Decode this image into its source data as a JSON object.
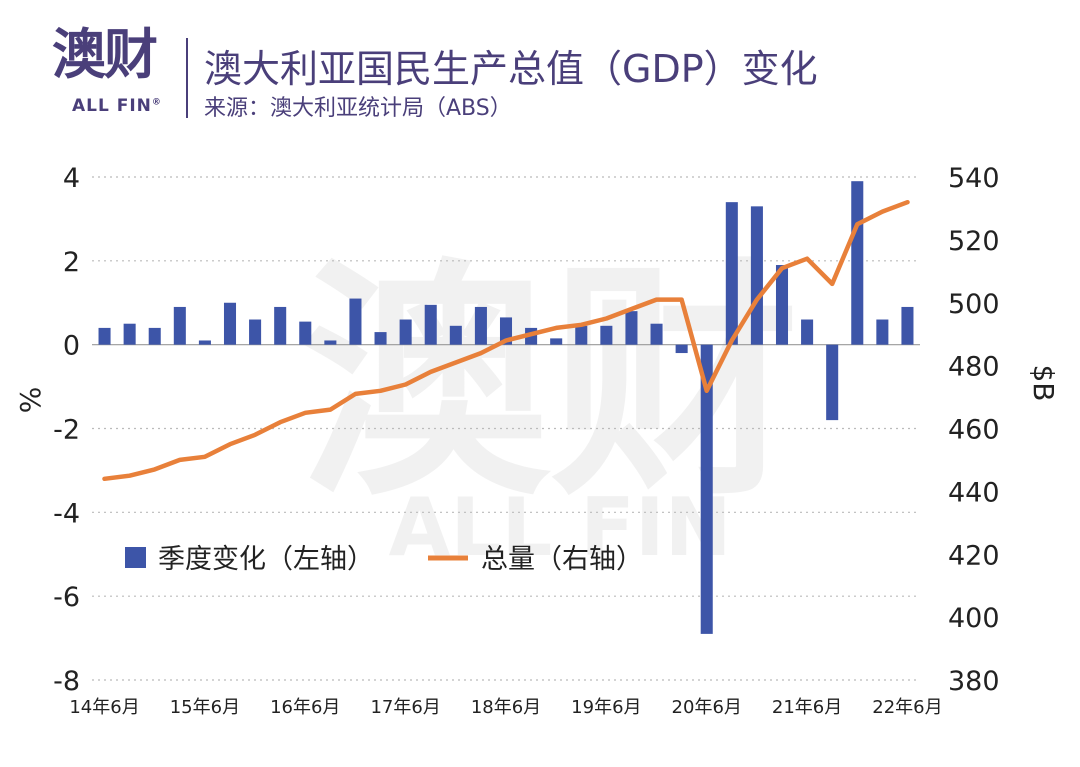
{
  "header": {
    "logo_main": "澳财",
    "logo_sub": "ALL FIN",
    "logo_reg": "®",
    "title": "澳大利亚国民生产总值（GDP）变化",
    "source": "来源：澳大利亚统计局（ABS）"
  },
  "watermark": {
    "main": "澳财",
    "sub": "ALL FIN"
  },
  "chart_data": {
    "type": "bar",
    "x_tick_labels": [
      "14年6月",
      "15年6月",
      "16年6月",
      "17年6月",
      "18年6月",
      "19年6月",
      "20年6月",
      "21年6月",
      "22年6月"
    ],
    "left_axis": {
      "label": "%",
      "ylim": [
        -8,
        4
      ],
      "ticks": [
        -8,
        -6,
        -4,
        -2,
        0,
        2,
        4
      ]
    },
    "right_axis": {
      "label": "$B",
      "ylim": [
        380,
        540
      ],
      "ticks": [
        380,
        400,
        420,
        440,
        460,
        480,
        500,
        520,
        540
      ]
    },
    "grid": "horizontal dotted",
    "legend_position": "lower-left",
    "series": [
      {
        "name": "季度变化（左轴）",
        "kind": "bar",
        "axis": "left",
        "color": "#3d55a8",
        "values": [
          0.4,
          0.5,
          0.4,
          0.9,
          0.1,
          1.0,
          0.6,
          0.9,
          0.55,
          0.1,
          1.1,
          0.3,
          0.6,
          0.95,
          0.45,
          0.9,
          0.65,
          0.4,
          0.15,
          0.45,
          0.45,
          0.8,
          0.5,
          -0.2,
          -6.9,
          3.4,
          3.3,
          1.9,
          0.6,
          -1.8,
          3.9,
          0.6,
          0.9
        ]
      },
      {
        "name": "总量（右轴）",
        "kind": "line",
        "axis": "right",
        "color": "#e8803a",
        "values": [
          444,
          445,
          447,
          450,
          451,
          455,
          458,
          462,
          465,
          466,
          471,
          472,
          474,
          478,
          481,
          484,
          488,
          490,
          492,
          493,
          495,
          498,
          501,
          501,
          472,
          488,
          501,
          511,
          514,
          506,
          525,
          529,
          532
        ]
      }
    ]
  }
}
